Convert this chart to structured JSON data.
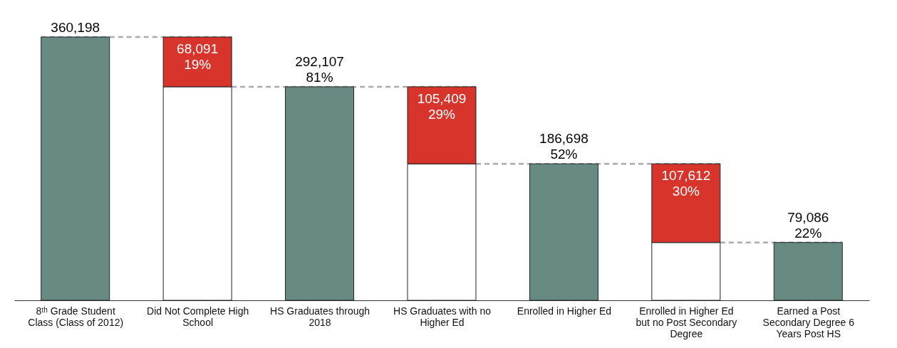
{
  "chart_data": {
    "type": "bar",
    "stacked": true,
    "categories": [
      "8ᵗʰ Grade Student Class (Class of 2012)",
      "Did Not Complete High School",
      "HS Graduates through 2018",
      "HS Graduates with no Higher Ed",
      "Enrolled in Higher Ed",
      "Enrolled in Higher Ed but no Post Secondary Degree",
      "Earned a Post Secondary Degree 6 Years Post HS"
    ],
    "series": [
      {
        "color": "#ffffff",
        "values": [
          null,
          292107,
          null,
          186698,
          null,
          79086,
          null
        ]
      },
      {
        "colors": [
          "#678b83",
          "#d7342c",
          "#678b83",
          "#d7342c",
          "#678b83",
          "#d7342c",
          "#678b83"
        ],
        "values": [
          360198,
          68091,
          292107,
          105409,
          186698,
          107612,
          79086
        ],
        "value_labels": [
          "360,198",
          "68,091\n19%",
          "292,107\n81%",
          "105,409\n29%",
          "186,698\n52%",
          "107,612\n30%",
          "79,086\n22%"
        ]
      }
    ],
    "ref_lines": [
      {
        "axis": "y",
        "value": 360198,
        "color": "#aaaaaa",
        "line_style": "dashed"
      },
      {
        "axis": "y",
        "value": 292107,
        "color": "#aaaaaa",
        "line_style": "dashed"
      },
      {
        "axis": "y",
        "value": 186698,
        "color": "#aaaaaa",
        "line_style": "dashed"
      },
      {
        "axis": "y",
        "value": 79086,
        "color": "#aaaaaa",
        "line_style": "dashed"
      }
    ],
    "grid": false,
    "tick_labels": "x"
  }
}
